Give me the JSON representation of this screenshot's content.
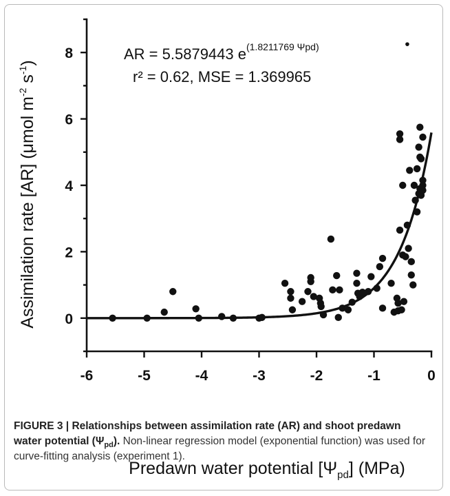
{
  "chart_data": {
    "type": "scatter",
    "xlim": [
      -6,
      0
    ],
    "ylim": [
      -1,
      9
    ],
    "x_ticks": [
      "-6",
      "-5",
      "-4",
      "-3",
      "-2",
      "-1",
      "0"
    ],
    "y_ticks": [
      "0",
      "2",
      "4",
      "6",
      "8"
    ],
    "xlabel_main": "Predawn water potential [Ψ",
    "xlabel_sub": "pd",
    "xlabel_end": "] (MPa)",
    "ylabel_main": "Assimilation rate [AR] (μmol m",
    "ylabel_sup1": "-2",
    "ylabel_mid": " s",
    "ylabel_sup2": "-1",
    "ylabel_end": ")",
    "equation_main": "AR = 5.5879443 e",
    "equation_exponent": "(1.8211769 Ψpd)",
    "equation_stats": "r² = 0.62, MSE = 1.369965",
    "fit": {
      "model": "exponential",
      "a": 5.5879443,
      "b": 1.8211769
    },
    "points": [
      [
        -5.55,
        0.0
      ],
      [
        -4.95,
        0.0
      ],
      [
        -4.65,
        0.18
      ],
      [
        -4.5,
        0.8
      ],
      [
        -4.1,
        0.28
      ],
      [
        -4.05,
        0.0
      ],
      [
        -3.65,
        0.05
      ],
      [
        -3.45,
        0.0
      ],
      [
        -3.0,
        0.0
      ],
      [
        -2.95,
        0.02
      ],
      [
        -2.55,
        1.05
      ],
      [
        -2.45,
        0.8
      ],
      [
        -2.45,
        0.6
      ],
      [
        -2.42,
        0.25
      ],
      [
        -2.25,
        0.5
      ],
      [
        -2.15,
        0.8
      ],
      [
        -2.1,
        1.1
      ],
      [
        -2.1,
        1.22
      ],
      [
        -2.05,
        0.65
      ],
      [
        -1.95,
        0.6
      ],
      [
        -1.93,
        0.45
      ],
      [
        -1.92,
        0.35
      ],
      [
        -1.88,
        0.1
      ],
      [
        -1.75,
        2.38
      ],
      [
        -1.72,
        0.85
      ],
      [
        -1.65,
        1.28
      ],
      [
        -1.62,
        0.02
      ],
      [
        -1.6,
        0.85
      ],
      [
        -1.55,
        0.3
      ],
      [
        -1.45,
        0.25
      ],
      [
        -1.38,
        0.48
      ],
      [
        -1.3,
        1.35
      ],
      [
        -1.3,
        1.05
      ],
      [
        -1.28,
        0.75
      ],
      [
        -1.25,
        0.65
      ],
      [
        -1.2,
        0.78
      ],
      [
        -1.1,
        0.8
      ],
      [
        -1.05,
        1.25
      ],
      [
        -0.95,
        0.9
      ],
      [
        -0.9,
        1.55
      ],
      [
        -0.85,
        1.8
      ],
      [
        -0.85,
        0.3
      ],
      [
        -0.7,
        1.05
      ],
      [
        -0.65,
        0.18
      ],
      [
        -0.6,
        0.6
      ],
      [
        -0.58,
        0.45
      ],
      [
        -0.58,
        0.22
      ],
      [
        -0.55,
        5.55
      ],
      [
        -0.55,
        5.38
      ],
      [
        -0.55,
        2.65
      ],
      [
        -0.52,
        0.25
      ],
      [
        -0.5,
        4.0
      ],
      [
        -0.5,
        1.9
      ],
      [
        -0.48,
        0.5
      ],
      [
        -0.45,
        1.85
      ],
      [
        -0.42,
        8.25
      ],
      [
        -0.42,
        2.8
      ],
      [
        -0.4,
        2.1
      ],
      [
        -0.38,
        4.45
      ],
      [
        -0.35,
        1.7
      ],
      [
        -0.35,
        1.3
      ],
      [
        -0.32,
        1.0
      ],
      [
        -0.3,
        4.0
      ],
      [
        -0.28,
        3.55
      ],
      [
        -0.25,
        4.5
      ],
      [
        -0.25,
        3.2
      ],
      [
        -0.22,
        5.15
      ],
      [
        -0.22,
        3.75
      ],
      [
        -0.2,
        5.75
      ],
      [
        -0.2,
        4.85
      ],
      [
        -0.2,
        3.9
      ],
      [
        -0.18,
        4.8
      ],
      [
        -0.18,
        3.7
      ],
      [
        -0.15,
        5.45
      ],
      [
        -0.15,
        4.15
      ],
      [
        -0.15,
        4.0
      ],
      [
        -0.15,
        3.85
      ]
    ]
  },
  "caption": {
    "label": "FIGURE 3 | ",
    "bold_text": "Relationships between assimilation rate (AR) and shoot predawn water potential (Ψ",
    "bold_sub": "pd",
    "bold_end": ").",
    "text": " Non-linear regression model (exponential function) was used for curve-fitting analysis (experiment 1)."
  }
}
